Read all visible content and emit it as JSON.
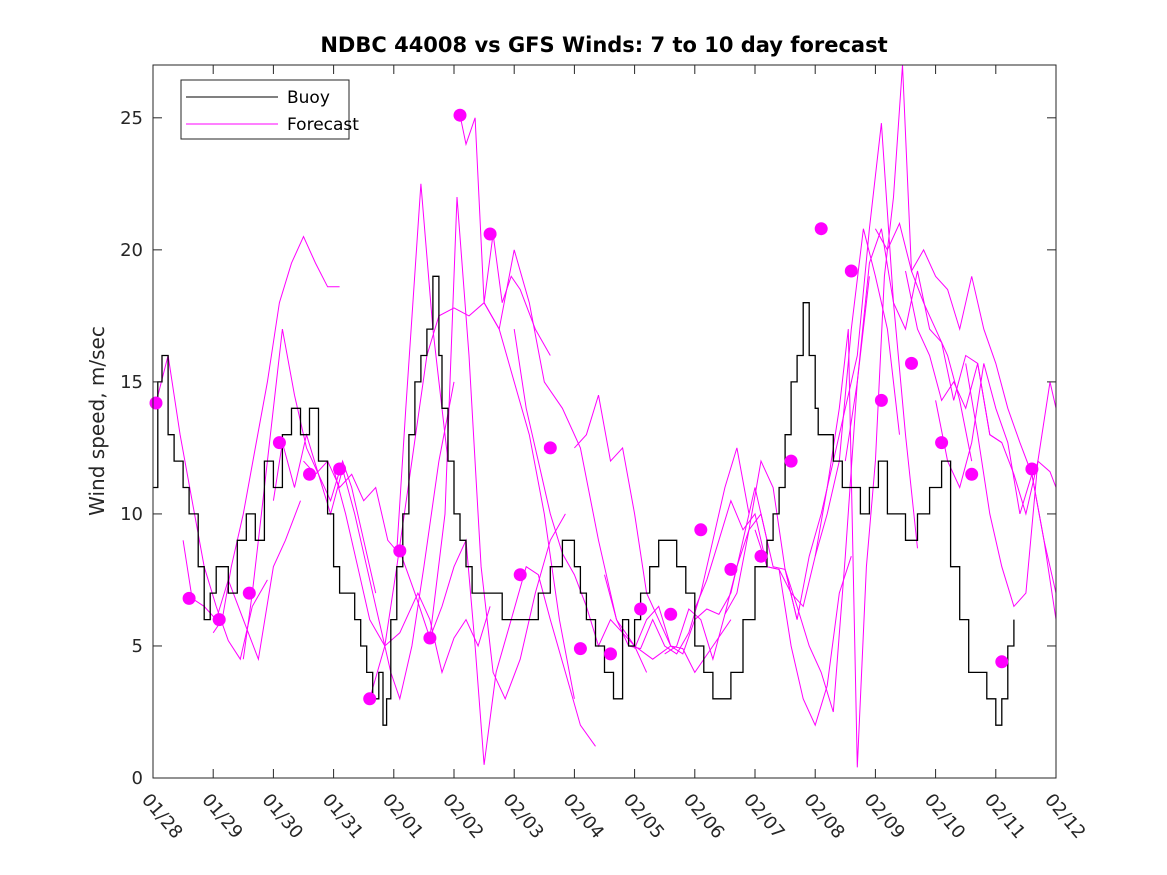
{
  "chart_data": {
    "type": "line",
    "title": "NDBC 44008 vs GFS Winds: 7 to 10 day forecast",
    "xlabel": "",
    "ylabel": "Wind speed, m/sec",
    "ylim": [
      0,
      27
    ],
    "yticks": [
      0,
      5,
      10,
      15,
      20,
      25
    ],
    "xlim": [
      0,
      15
    ],
    "xtick_labels": [
      "01/28",
      "01/29",
      "01/30",
      "01/31",
      "02/01",
      "02/02",
      "02/03",
      "02/04",
      "02/05",
      "02/06",
      "02/07",
      "02/08",
      "02/09",
      "02/10",
      "02/11",
      "02/12"
    ],
    "legend": {
      "placement": "top-left",
      "entries": [
        "Buoy",
        "Forecast"
      ]
    },
    "colors": {
      "buoy": "#000000",
      "forecast": "#ff00ff",
      "marker": "#ff00ff",
      "axes": "#262626"
    },
    "buoy": {
      "name": "Buoy",
      "x": [
        0,
        0.08,
        0.15,
        0.25,
        0.35,
        0.5,
        0.6,
        0.75,
        0.85,
        0.95,
        1.05,
        1.15,
        1.25,
        1.4,
        1.55,
        1.7,
        1.85,
        2.0,
        2.15,
        2.3,
        2.45,
        2.6,
        2.75,
        2.9,
        3.0,
        3.1,
        3.2,
        3.35,
        3.45,
        3.55,
        3.65,
        3.75,
        3.82,
        3.88,
        3.95,
        4.05,
        4.15,
        4.25,
        4.35,
        4.45,
        4.55,
        4.65,
        4.75,
        4.8,
        4.9,
        5.0,
        5.1,
        5.2,
        5.3,
        5.45,
        5.6,
        5.8,
        6.0,
        6.2,
        6.4,
        6.6,
        6.8,
        7.0,
        7.1,
        7.2,
        7.35,
        7.5,
        7.65,
        7.8,
        7.9,
        8.0,
        8.1,
        8.25,
        8.4,
        8.55,
        8.7,
        8.85,
        9.0,
        9.15,
        9.3,
        9.45,
        9.6,
        9.8,
        10.0,
        10.1,
        10.2,
        10.3,
        10.4,
        10.5,
        10.6,
        10.7,
        10.8,
        10.9,
        11.0,
        11.05,
        11.15,
        11.3,
        11.45,
        11.6,
        11.75,
        11.9,
        12.05,
        12.2,
        12.35,
        12.5,
        12.7,
        12.9,
        13.1,
        13.25,
        13.4,
        13.55,
        13.7,
        13.85,
        14.0,
        14.1,
        14.2,
        14.3
      ],
      "values": [
        11,
        15,
        16,
        13,
        12,
        11,
        10,
        8,
        6,
        7,
        8,
        8,
        7,
        9,
        10,
        9,
        12,
        11,
        13,
        14,
        13,
        14,
        12,
        10,
        8,
        7,
        7,
        6,
        5,
        4,
        3,
        4,
        2,
        3,
        6,
        8,
        10,
        13,
        15,
        16,
        17,
        19,
        16,
        14,
        12,
        10,
        9,
        8,
        7,
        7,
        7,
        6,
        6,
        6,
        7,
        8,
        9,
        8,
        7,
        6,
        5,
        4,
        3,
        6,
        5,
        6,
        7,
        8,
        9,
        9,
        8,
        7,
        5,
        4,
        3,
        3,
        4,
        6,
        8,
        8,
        9,
        10,
        11,
        13,
        15,
        16,
        18,
        16,
        14,
        13,
        13,
        12,
        11,
        11,
        10,
        11,
        12,
        10,
        10,
        9,
        10,
        11,
        12,
        8,
        6,
        4,
        4,
        3,
        2,
        3,
        5,
        6
      ]
    },
    "forecast": [
      {
        "name": "Forecast",
        "x": [
          0.05,
          0.25,
          0.45,
          0.65,
          0.85,
          1.05,
          1.25,
          1.45,
          1.65,
          1.9
        ],
        "values": [
          14.2,
          16,
          13,
          10.5,
          8,
          6.5,
          5.2,
          4.5,
          6.5,
          7.5
        ]
      },
      {
        "name": "Forecast",
        "x": [
          0.5,
          0.65,
          0.85,
          1.05,
          1.25,
          1.5,
          1.75,
          2.0,
          2.2,
          2.45
        ],
        "values": [
          9,
          6.8,
          6.5,
          6,
          7.5,
          6,
          4.5,
          8,
          9,
          10.5
        ]
      },
      {
        "name": "Forecast",
        "x": [
          1.0,
          1.15,
          1.3,
          1.5,
          1.7,
          1.9,
          2.1,
          2.3,
          2.5,
          2.7,
          2.9,
          3.1
        ],
        "values": [
          5.5,
          6,
          8,
          10,
          12.5,
          15,
          18,
          19.5,
          20.5,
          19.5,
          18.6,
          18.6
        ]
      },
      {
        "name": "Forecast",
        "x": [
          1.5,
          1.65,
          1.8,
          2.0,
          2.15,
          2.35,
          2.55,
          2.75,
          2.95,
          3.15,
          3.3,
          3.5,
          3.7
        ],
        "values": [
          4.5,
          7,
          10,
          14,
          17,
          14.5,
          12.5,
          11.5,
          10.5,
          12,
          11,
          9,
          7
        ]
      },
      {
        "name": "Forecast",
        "x": [
          2.0,
          2.15,
          2.35,
          2.55,
          2.75,
          2.95,
          3.15,
          3.35,
          3.55,
          3.75,
          3.95,
          4.1,
          4.3,
          4.5,
          4.75,
          5.0
        ],
        "values": [
          10.5,
          12.7,
          11,
          13,
          11.5,
          10,
          11.7,
          10,
          8,
          6,
          4,
          3,
          5,
          8,
          12,
          15
        ]
      },
      {
        "name": "Forecast",
        "x": [
          2.5,
          2.7,
          2.9,
          3.1,
          3.3,
          3.5,
          3.7,
          3.9,
          4.05,
          4.2,
          4.45,
          4.65,
          4.9
        ],
        "values": [
          12,
          11.5,
          12,
          11,
          11.5,
          10.5,
          11,
          9,
          8.6,
          14,
          22.5,
          17,
          12
        ]
      },
      {
        "name": "Forecast",
        "x": [
          3.0,
          3.2,
          3.4,
          3.6,
          3.85,
          4.1,
          4.4,
          4.6,
          4.8,
          5.0,
          5.2,
          5.4,
          5.6
        ],
        "values": [
          11.7,
          10,
          8,
          6,
          5,
          5.5,
          7,
          6,
          4,
          5.3,
          6,
          5,
          6.5
        ]
      },
      {
        "name": "Forecast",
        "x": [
          3.6,
          3.85,
          4.05,
          4.3,
          4.55,
          4.75,
          5.0,
          5.25,
          5.5,
          5.75,
          6.0,
          6.25,
          6.5,
          6.75,
          7.0
        ],
        "values": [
          3,
          5,
          8,
          12,
          16,
          17.5,
          17.8,
          17.5,
          18,
          17,
          15,
          13,
          10,
          6,
          3
        ]
      },
      {
        "name": "Forecast",
        "x": [
          4.1,
          4.35,
          4.6,
          4.85,
          5.05,
          5.25,
          5.45,
          5.65,
          5.85,
          6.1,
          6.35,
          6.6,
          6.85
        ],
        "values": [
          8.6,
          7,
          5.3,
          10,
          22,
          16,
          8,
          4,
          3,
          4.5,
          7,
          9,
          10
        ]
      },
      {
        "name": "Forecast",
        "x": [
          4.6,
          4.8,
          5.0,
          5.2,
          5.35,
          5.5,
          5.7,
          5.95,
          6.2,
          6.4,
          6.6,
          6.85,
          7.1,
          7.35
        ],
        "values": [
          5.3,
          6.5,
          8,
          9,
          5,
          0.5,
          4,
          6,
          8,
          7.7,
          6,
          4,
          2,
          1.2
        ]
      },
      {
        "name": "Forecast",
        "x": [
          5.1,
          5.2,
          5.35,
          5.5,
          5.65,
          5.8,
          5.95,
          6.1,
          6.35,
          6.6
        ],
        "values": [
          25.1,
          24,
          25,
          18,
          20.6,
          18,
          19,
          18.5,
          17,
          16
        ]
      },
      {
        "name": "Forecast",
        "x": [
          5.5,
          5.75,
          6.0,
          6.25,
          6.5,
          6.8,
          7.1,
          7.4,
          7.7,
          8.0,
          8.3,
          8.6
        ],
        "values": [
          18,
          17,
          20,
          18,
          15,
          14,
          12.5,
          9,
          6,
          5,
          4.5,
          5
        ]
      },
      {
        "name": "Forecast",
        "x": [
          6.0,
          6.2,
          6.4,
          6.6,
          6.8,
          7.0,
          7.2,
          7.4,
          7.6,
          7.8,
          8.0,
          8.2
        ],
        "values": [
          17,
          14,
          12,
          10,
          8.5,
          7.7,
          6.5,
          5,
          6,
          5.5,
          5,
          4
        ]
      },
      {
        "name": "Forecast",
        "x": [
          7.0,
          7.2,
          7.4,
          7.6,
          7.8,
          8.0,
          8.2,
          8.4,
          8.6,
          8.8,
          9.0,
          9.3,
          9.6
        ],
        "values": [
          12.5,
          13,
          14.5,
          12,
          12.5,
          10,
          7,
          6,
          5,
          4.9,
          4,
          5,
          6
        ]
      },
      {
        "name": "Forecast",
        "x": [
          7.5,
          7.7,
          7.9,
          8.1,
          8.3,
          8.5,
          8.7,
          8.9,
          9.1,
          9.3,
          9.5,
          9.7,
          9.9
        ],
        "values": [
          7.7,
          6,
          5,
          4.9,
          6,
          5,
          4.7,
          5.5,
          7,
          9,
          11,
          12.5,
          10
        ]
      },
      {
        "name": "Forecast",
        "x": [
          8.0,
          8.2,
          8.4,
          8.6,
          8.8,
          9.0,
          9.2,
          9.4,
          9.6,
          9.8,
          10.0,
          10.2
        ],
        "values": [
          4.9,
          6,
          6.5,
          5,
          4.7,
          6,
          6.4,
          6.2,
          7,
          9,
          11,
          9
        ]
      },
      {
        "name": "Forecast",
        "x": [
          8.5,
          8.7,
          8.9,
          9.1,
          9.3,
          9.5,
          9.7,
          9.9,
          10.1,
          10.3,
          10.5,
          10.7
        ],
        "values": [
          4.7,
          5,
          6.4,
          6,
          4.5,
          6.2,
          7,
          9.4,
          10,
          8,
          7.9,
          6
        ]
      },
      {
        "name": "Forecast",
        "x": [
          9.0,
          9.2,
          9.4,
          9.6,
          9.8,
          10.0,
          10.2,
          10.4,
          10.6,
          10.8,
          11.0,
          11.2,
          11.4,
          11.6
        ],
        "values": [
          6.4,
          7.5,
          9,
          10.5,
          9.4,
          10,
          8,
          7.9,
          5,
          3,
          2,
          3.5,
          7,
          8.4
        ]
      },
      {
        "name": "Forecast",
        "x": [
          9.5,
          9.7,
          9.9,
          10.1,
          10.3,
          10.5,
          10.7,
          10.9,
          11.1,
          11.3,
          11.5,
          11.7,
          11.9
        ],
        "values": [
          6.2,
          8,
          9.4,
          12,
          11,
          7.9,
          6.5,
          5,
          4,
          2.5,
          8.4,
          15,
          19
        ]
      },
      {
        "name": "Forecast",
        "x": [
          10.0,
          10.2,
          10.4,
          10.6,
          10.8,
          11.0,
          11.2,
          11.4,
          11.6,
          11.8,
          12.0,
          12.2,
          12.4
        ],
        "values": [
          9.4,
          8,
          7.9,
          7,
          6.5,
          8.4,
          10,
          12,
          17,
          20.8,
          19,
          17,
          13
        ]
      },
      {
        "name": "Forecast",
        "x": [
          10.5,
          10.7,
          10.9,
          11.1,
          11.3,
          11.5,
          11.7,
          11.9,
          12.1,
          12.3,
          12.5,
          12.7
        ],
        "values": [
          7.9,
          6,
          8.4,
          10,
          12,
          14,
          16,
          20.8,
          24.8,
          18,
          13,
          8.7
        ]
      },
      {
        "name": "Forecast",
        "x": [
          11.0,
          11.2,
          11.4,
          11.55,
          11.7,
          11.85,
          12.0,
          12.15,
          12.3,
          12.45,
          12.6,
          12.8,
          13.0,
          13.2,
          13.4,
          13.6
        ],
        "values": [
          8.4,
          11,
          14,
          17,
          0.4,
          8,
          12,
          19,
          22,
          27,
          19.2,
          18,
          17,
          16,
          14.3,
          12
        ]
      },
      {
        "name": "Forecast",
        "x": [
          11.5,
          11.7,
          11.9,
          12.1,
          12.3,
          12.5,
          12.7,
          12.9,
          13.1,
          13.3,
          13.5,
          13.7,
          13.9,
          14.1
        ],
        "values": [
          12,
          15,
          19.5,
          20.8,
          18,
          17,
          19.2,
          17,
          16.5,
          14.3,
          16,
          15.7,
          13,
          12.7
        ]
      },
      {
        "name": "Forecast",
        "x": [
          12.0,
          12.2,
          12.4,
          12.6,
          12.8,
          13.0,
          13.2,
          13.4,
          13.6,
          13.8,
          14.0,
          14.2,
          14.4,
          14.6,
          14.8,
          15.0
        ],
        "values": [
          20.8,
          20,
          21,
          19.2,
          20,
          19,
          18.5,
          17,
          19,
          17,
          15.7,
          14,
          12.7,
          11.5,
          9,
          7
        ]
      },
      {
        "name": "Forecast",
        "x": [
          12.5,
          12.7,
          12.9,
          13.1,
          13.3,
          13.5,
          13.7,
          13.9,
          14.1,
          14.3,
          14.5,
          14.7,
          14.9,
          15.0
        ],
        "values": [
          19.2,
          17,
          16,
          14.3,
          15,
          14,
          15.7,
          13,
          12.7,
          11.5,
          10,
          12,
          15,
          14
        ]
      },
      {
        "name": "Forecast",
        "x": [
          13.0,
          13.2,
          13.4,
          13.6,
          13.8,
          14.0,
          14.2,
          14.4,
          14.6,
          14.8,
          15.0
        ],
        "values": [
          14.3,
          12,
          11,
          12.7,
          15.7,
          14,
          12.7,
          10,
          11.5,
          9,
          6
        ]
      },
      {
        "name": "Forecast",
        "x": [
          13.5,
          13.7,
          13.9,
          14.1,
          14.3,
          14.5,
          14.7,
          14.9,
          15.0
        ],
        "values": [
          15.7,
          13,
          10,
          8,
          6.5,
          7,
          12,
          11.6,
          11
        ]
      }
    ],
    "markers": {
      "name": "Forecast",
      "x": [
        0.05,
        0.6,
        1.1,
        1.6,
        2.1,
        2.6,
        3.1,
        3.6,
        4.1,
        4.6,
        5.1,
        5.6,
        6.1,
        6.6,
        7.1,
        7.6,
        8.1,
        8.6,
        9.1,
        9.6,
        10.1,
        10.6,
        11.1,
        11.6,
        12.1,
        12.6,
        13.1,
        13.6,
        14.1,
        14.6
      ],
      "values": [
        14.2,
        6.8,
        6,
        7,
        12.7,
        11.5,
        11.7,
        3,
        8.6,
        5.3,
        25.1,
        20.6,
        7.7,
        12.5,
        4.9,
        4.7,
        6.4,
        6.2,
        9.4,
        7.9,
        8.4,
        12,
        20.8,
        19.2,
        14.3,
        15.7,
        12.7,
        11.5,
        4.4,
        11.7
      ]
    }
  }
}
